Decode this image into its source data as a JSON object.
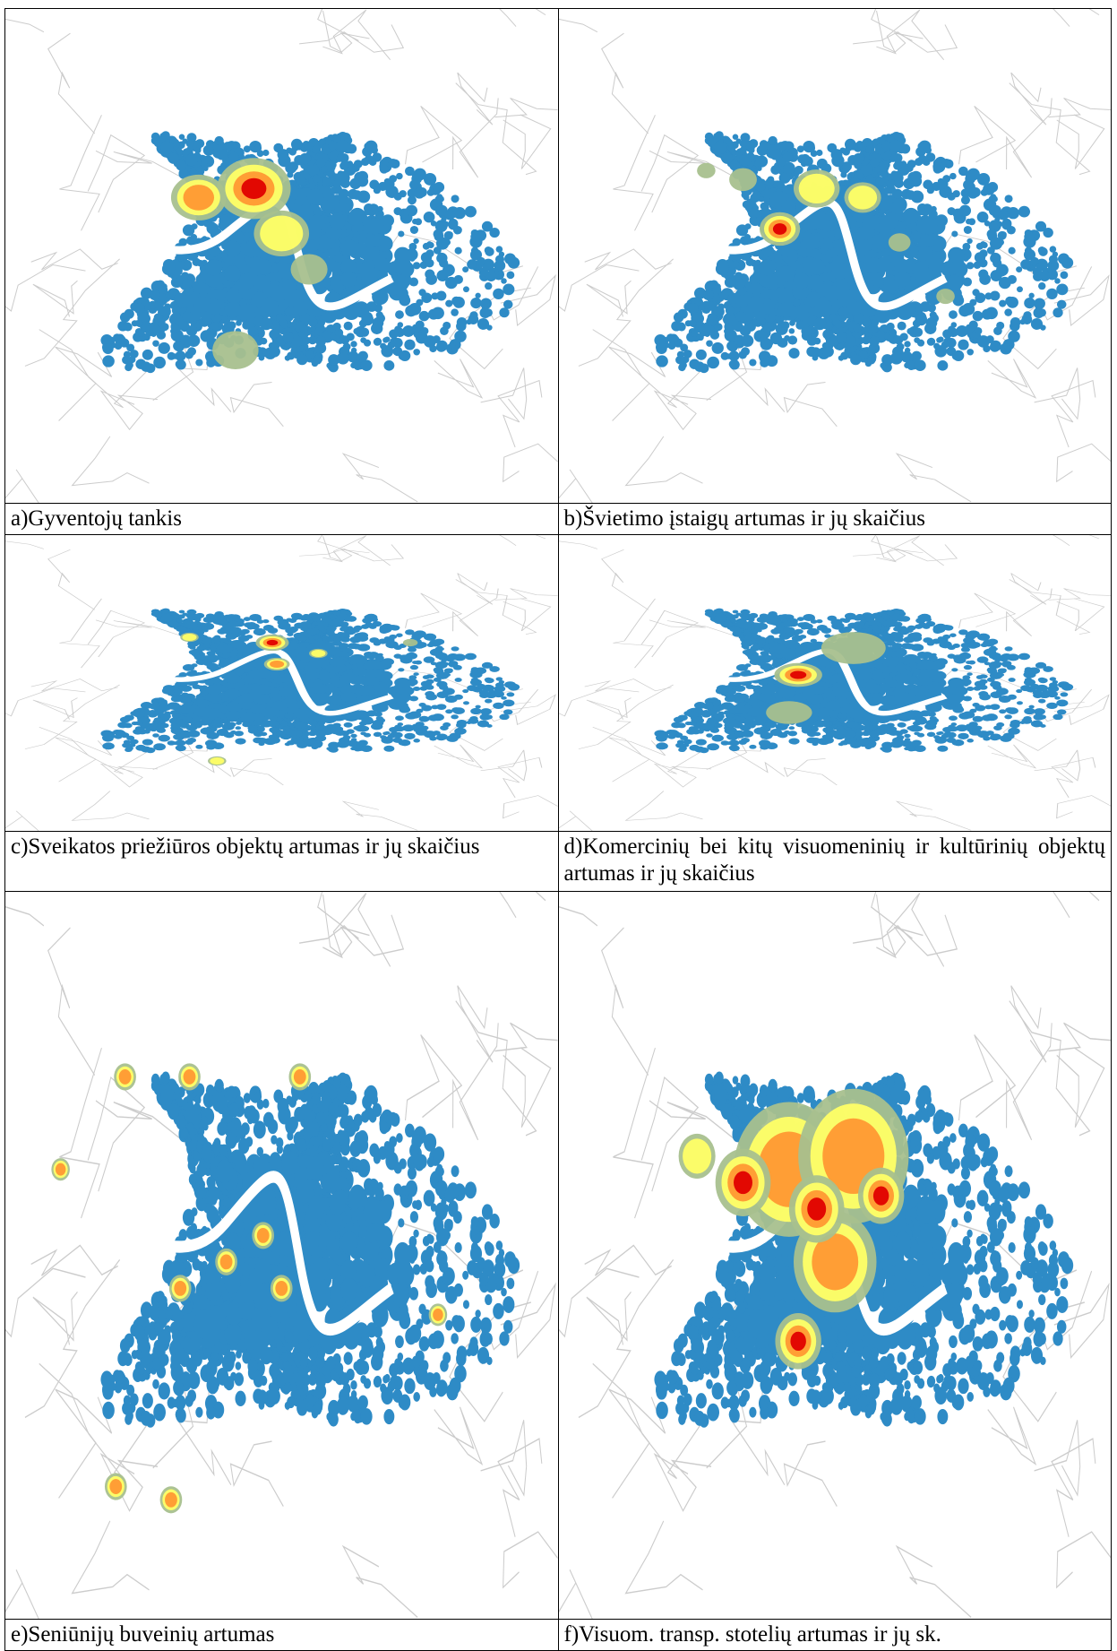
{
  "panels": [
    {
      "caption": "a)Gyventojų tankis"
    },
    {
      "caption": "b)Švietimo įstaigų  artumas ir jų skaičius"
    },
    {
      "caption": "c)Sveikatos priežiūros objektų artumas ir jų skaičius"
    },
    {
      "caption": "d)Komercinių bei kitų visuomeninių ir kultūrinių objektų artumas ir jų skaičius"
    },
    {
      "caption": "e)Seniūnijų buveinių artumas"
    },
    {
      "caption": "f)Visuom. transp. stotelių artumas ir jų sk."
    }
  ]
}
